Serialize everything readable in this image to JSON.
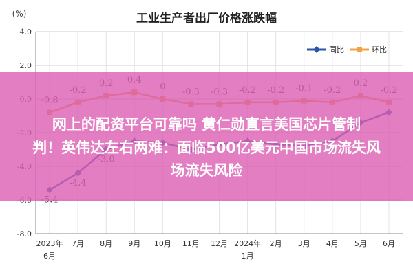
{
  "chart_data": {
    "type": "line",
    "title": "工业生产者出厂价格涨跌幅",
    "unit_label": "(%)",
    "categories": [
      "2023年6月",
      "7月",
      "8月",
      "9月",
      "10月",
      "11月",
      "12月",
      "2024年1月",
      "2月",
      "3月",
      "4月",
      "5月",
      "6月"
    ],
    "category_lines": [
      [
        "2023年",
        "6月"
      ],
      [
        "7月"
      ],
      [
        "8月"
      ],
      [
        "9月"
      ],
      [
        "10月"
      ],
      [
        "11月"
      ],
      [
        "12月"
      ],
      [
        "2024年",
        "1月"
      ],
      [
        "2月"
      ],
      [
        "3月"
      ],
      [
        "4月"
      ],
      [
        "5月"
      ],
      [
        "6月"
      ]
    ],
    "series": [
      {
        "name": "同比",
        "color": "#2a56a6",
        "marker": "diamond",
        "values": [
          -5.4,
          -4.4,
          -3.0,
          -2.5,
          -2.6,
          -3.0,
          -2.7,
          -2.5,
          -2.7,
          -2.8,
          -2.5,
          -1.4,
          -0.8
        ],
        "labels": [
          "-5.4",
          "-4.4",
          "-3.0",
          "",
          "",
          "",
          "",
          "",
          "",
          "",
          "",
          "",
          ""
        ]
      },
      {
        "name": "环比",
        "color": "#f1a246",
        "marker": "square",
        "values": [
          -0.8,
          -0.2,
          0.2,
          0.4,
          0.0,
          -0.3,
          -0.3,
          -0.2,
          -0.2,
          -0.1,
          -0.2,
          0.2,
          -0.2
        ],
        "labels": [
          "-0.8",
          "-0.2",
          "0.2",
          "0.4",
          "0",
          "-0.3",
          "-0.3",
          "-0.2",
          "-0.2",
          "-0.1",
          "-0.2",
          "0.2",
          "-0.2"
        ]
      }
    ],
    "ylim": [
      -8.0,
      4.0
    ],
    "yticks": [
      "4.0",
      "2.0",
      "0.0",
      "-2.0",
      "-4.0",
      "-6.0",
      "-8.0"
    ],
    "grid": true,
    "legend": "top-right"
  },
  "overlay": {
    "headline_line1": "网上的配资平台可靠吗 黄仁勋直言美国芯片管制",
    "headline_line2": "判！英伟达左右两难：面临500亿美元中国市场流失风",
    "headline_line3": "场流失风险",
    "color": "#db5eb2"
  }
}
